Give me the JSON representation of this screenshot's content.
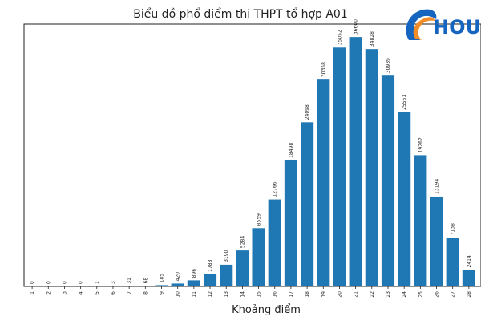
{
  "chart_data": {
    "type": "bar",
    "title": "Biểu đồ phổ điểm thi THPT tổ hợp A01",
    "xlabel": "Khoảng điểm",
    "ylabel": "",
    "categories": [
      "1",
      "2",
      "3",
      "4",
      "5",
      "6",
      "7",
      "8",
      "9",
      "10",
      "11",
      "12",
      "13",
      "14",
      "15",
      "16",
      "17",
      "18",
      "19",
      "20",
      "21",
      "22",
      "23",
      "24",
      "25",
      "26",
      "27",
      "28"
    ],
    "values": [
      0,
      0,
      0,
      0,
      1,
      3,
      31,
      68,
      185,
      420,
      896,
      1783,
      3190,
      5284,
      8559,
      12766,
      18498,
      24098,
      30358,
      35052,
      36600,
      34828,
      30939,
      25561,
      19262,
      13194,
      7138,
      2414
    ],
    "ylim": [
      0,
      38500
    ],
    "grid": false,
    "bar_color": "#1f77b4"
  },
  "logo": {
    "text": "HOU",
    "colors": {
      "blue": "#1565c0",
      "orange": "#f28c28"
    }
  }
}
